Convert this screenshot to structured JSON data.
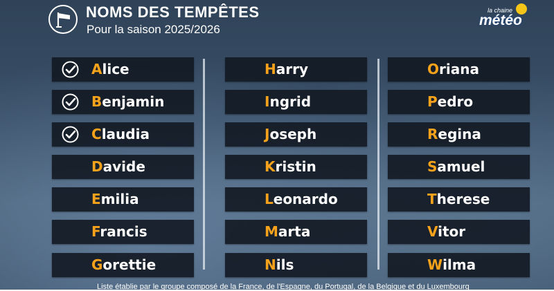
{
  "header": {
    "title": "NOMS DES TEMPÊTES",
    "subtitle": "Pour la saison 2025/2026",
    "icon": "wind-flag-icon"
  },
  "logo": {
    "small_text": "la chaine",
    "big_text": "météo",
    "accent": "#f5c518"
  },
  "colors": {
    "initial": "#f7a21b",
    "row_bg": "#12182a",
    "text": "#ffffff"
  },
  "columns": [
    [
      {
        "initial": "A",
        "rest": "lice",
        "done": true
      },
      {
        "initial": "B",
        "rest": "enjamin",
        "done": true
      },
      {
        "initial": "C",
        "rest": "laudia",
        "done": true
      },
      {
        "initial": "D",
        "rest": "avide",
        "done": false
      },
      {
        "initial": "E",
        "rest": "milia",
        "done": false
      },
      {
        "initial": "F",
        "rest": "rancis",
        "done": false
      },
      {
        "initial": "G",
        "rest": "orettie",
        "done": false
      }
    ],
    [
      {
        "initial": "H",
        "rest": "arry",
        "done": false
      },
      {
        "initial": "I",
        "rest": "ngrid",
        "done": false
      },
      {
        "initial": "J",
        "rest": "oseph",
        "done": false
      },
      {
        "initial": "K",
        "rest": "ristin",
        "done": false
      },
      {
        "initial": "L",
        "rest": "eonardo",
        "done": false
      },
      {
        "initial": "M",
        "rest": "arta",
        "done": false
      },
      {
        "initial": "N",
        "rest": "ils",
        "done": false
      }
    ],
    [
      {
        "initial": "O",
        "rest": "riana",
        "done": false
      },
      {
        "initial": "P",
        "rest": "edro",
        "done": false
      },
      {
        "initial": "R",
        "rest": "egina",
        "done": false
      },
      {
        "initial": "S",
        "rest": "amuel",
        "done": false
      },
      {
        "initial": "T",
        "rest": "herese",
        "done": false
      },
      {
        "initial": "V",
        "rest": "itor",
        "done": false
      },
      {
        "initial": "W",
        "rest": "ilma",
        "done": false
      }
    ]
  ],
  "footnote": "Liste établie par le groupe composé de la France, de l'Espagne, du Portugal, de la Belgique et du Luxembourg"
}
